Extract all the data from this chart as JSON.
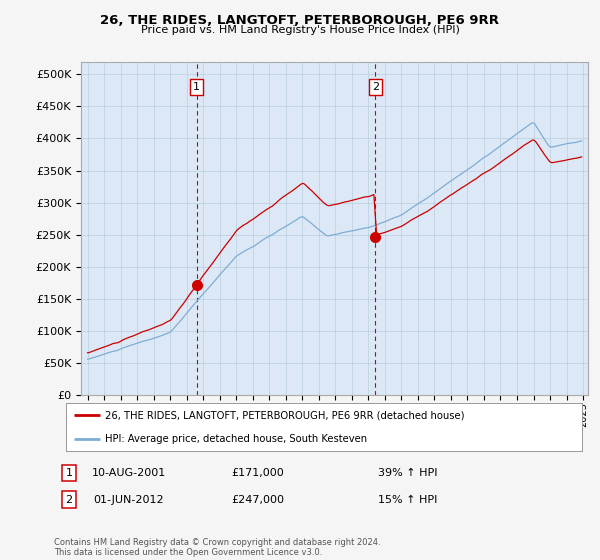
{
  "title": "26, THE RIDES, LANGTOFT, PETERBOROUGH, PE6 9RR",
  "subtitle": "Price paid vs. HM Land Registry's House Price Index (HPI)",
  "legend_line1": "26, THE RIDES, LANGTOFT, PETERBOROUGH, PE6 9RR (detached house)",
  "legend_line2": "HPI: Average price, detached house, South Kesteven",
  "footer": "Contains HM Land Registry data © Crown copyright and database right 2024.\nThis data is licensed under the Open Government Licence v3.0.",
  "transaction1_date": "10-AUG-2001",
  "transaction1_price": "£171,000",
  "transaction1_hpi": "39% ↑ HPI",
  "transaction2_date": "01-JUN-2012",
  "transaction2_price": "£247,000",
  "transaction2_hpi": "15% ↑ HPI",
  "color_red": "#cc0000",
  "color_blue": "#7eadd4",
  "color_dashed": "#cc0000",
  "ylim_min": 0,
  "ylim_max": 520000,
  "plot_bg": "#dce8f5",
  "fig_bg": "#f5f5f5",
  "vline1_year": 2001.6,
  "vline2_year": 2012.42,
  "marker1_year": 2001.6,
  "marker1_value": 171000,
  "marker2_year": 2012.42,
  "marker2_value": 247000
}
